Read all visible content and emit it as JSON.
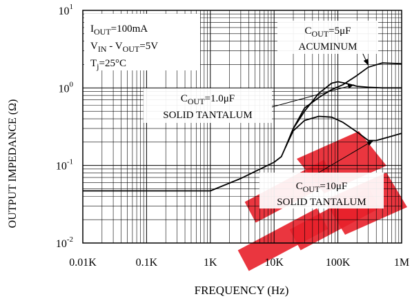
{
  "chart_data": {
    "type": "line",
    "xlabel": "FREQUENCY  (Hz)",
    "ylabel": "OUTPUT IMPEDANCE  (Ω)",
    "x_scale": "log",
    "y_scale": "log",
    "xlim": [
      10,
      1000000
    ],
    "ylim": [
      0.01,
      10
    ],
    "grid": true,
    "x_ticks": [
      {
        "value": 10,
        "label": "0.01K"
      },
      {
        "value": 100,
        "label": "0.1K"
      },
      {
        "value": 1000,
        "label": "1K"
      },
      {
        "value": 10000,
        "label": "10K"
      },
      {
        "value": 100000,
        "label": "100K"
      },
      {
        "value": 1000000,
        "label": "1M"
      }
    ],
    "y_ticks": [
      {
        "value": 10,
        "base": "10",
        "exp": "1"
      },
      {
        "value": 1,
        "base": "10",
        "exp": "0"
      },
      {
        "value": 0.1,
        "base": "10",
        "exp": "-1"
      },
      {
        "value": 0.01,
        "base": "10",
        "exp": "-2"
      }
    ],
    "conditions": [
      {
        "main": "I",
        "sub": "OUT",
        "rest": "=100mA"
      },
      {
        "main": "V",
        "sub": "IN",
        "rest": " - V",
        "sub2": "OUT",
        "rest2": "=5V"
      },
      {
        "main": "T",
        "sub": "j",
        "rest": "=25°C"
      }
    ],
    "series": [
      {
        "color": "#000000",
        "x": [
          10,
          1000,
          3000,
          10000,
          13000,
          15000,
          20000,
          30000,
          50000,
          80000,
          120000,
          200000,
          300000,
          500000,
          1000000
        ],
        "y": [
          0.047,
          0.047,
          0.068,
          0.11,
          0.13,
          0.17,
          0.3,
          0.55,
          0.75,
          0.95,
          1.1,
          1.45,
          1.85,
          2.1,
          2.05
        ]
      },
      {
        "color": "#000000",
        "x": [
          15000,
          20000,
          30000,
          50000,
          80000,
          100000,
          130000,
          200000,
          300000,
          500000,
          1000000
        ],
        "y": [
          0.17,
          0.3,
          0.5,
          0.85,
          1.15,
          1.2,
          1.15,
          1.05,
          1.02,
          1.0,
          1.0
        ]
      },
      {
        "color": "#000000",
        "x": [
          15000,
          20000,
          30000,
          50000,
          80000,
          120000,
          200000,
          300000,
          400000,
          600000,
          1000000
        ],
        "y": [
          0.17,
          0.28,
          0.38,
          0.43,
          0.42,
          0.36,
          0.27,
          0.21,
          0.21,
          0.23,
          0.26
        ]
      }
    ],
    "annotations": [
      {
        "line1_main": "C",
        "line1_sub": "OUT",
        "line1_rest": "=5μF",
        "line2": "ACUMINUM",
        "arrow_to": [
          300000,
          1.95
        ]
      },
      {
        "line1_main": "C",
        "line1_sub": "OUT",
        "line1_rest": "=1.0μF",
        "line2": "SOLID TANTALUM",
        "arrow_to": [
          180000,
          1.1
        ]
      },
      {
        "line1_main": "C",
        "line1_sub": "OUT",
        "line1_rest": "=10μF",
        "line2": "SOLID TANTALUM",
        "arrow_to": [
          360000,
          0.21
        ]
      }
    ]
  },
  "watermark": {
    "color": "#e8202a"
  }
}
